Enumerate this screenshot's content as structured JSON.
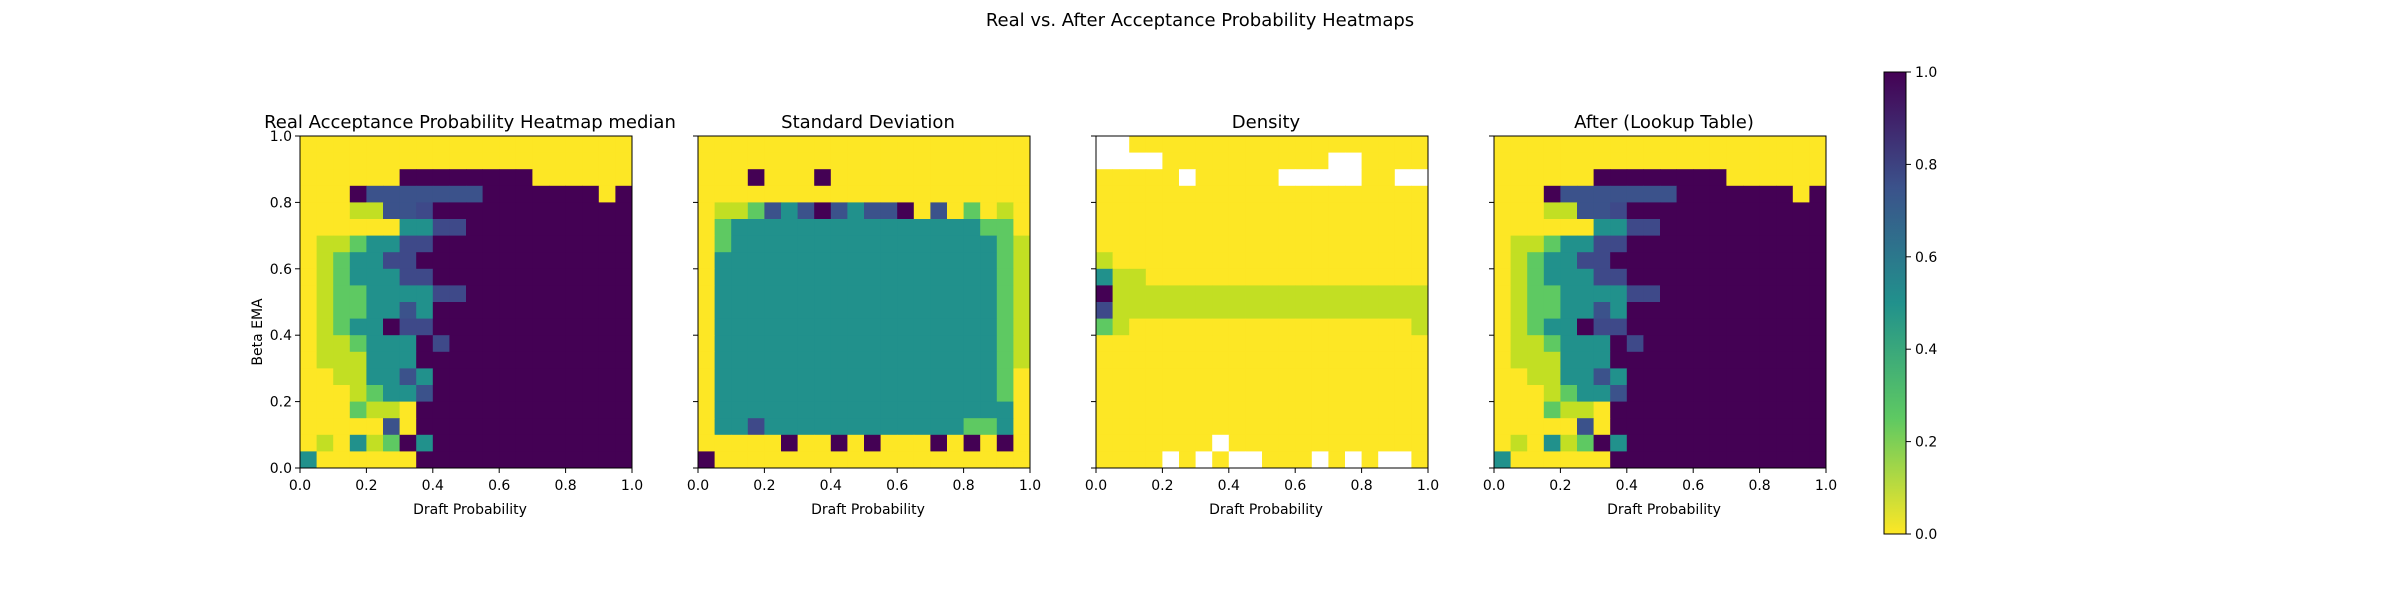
{
  "chart_data": [
    {
      "type": "heatmap",
      "title": "Real Acceptance Probability Heatmap median",
      "xlabel": "Draft Probability",
      "ylabel": "Beta EMA",
      "xlim": [
        0,
        1
      ],
      "ylim": [
        0,
        1
      ],
      "xticks": [
        "0.0",
        "0.2",
        "0.4",
        "0.6",
        "0.8",
        "1.0"
      ],
      "yticks": [
        "0.0",
        "0.2",
        "0.4",
        "0.6",
        "0.8",
        "1.0"
      ],
      "grid": "20x20",
      "colormap": "viridis_r",
      "values": [
        "YYYYYYYYYYYYYYYYYYYY",
        "YYYYYYYYYYYYYYYYYYYY",
        "YYYYYYPPPPPPPPYYYYYY",
        "YYYPNNNNNNNPPPPPPPYP",
        "YYYLLNNDPPPPPPPPPPPP",
        "YYYYYYTTDDPPPPPPPPPP",
        "YLLGTTDDPPPPPPPPPPPP",
        "YLGTTDDPPPPPPPPPPPPP",
        "YLGTTTDDPPPPPPPPPPPP",
        "YLGGTTTTDDPPPPPPPPPP",
        "YLGGTTNTPPPPPPPPPPPP",
        "YLGTTPDDPPPPPPPPPPPP",
        "YLLGTTTPDPPPPPPPPPPP",
        "YLLLTTTPPPPPPPPPPPPP",
        "YYLLTTNTPPPPPPPPPPPP",
        "YYYLGTTNPPPPPPPPPPPP",
        "YYYGLLYPPPPPPPPPPPPP",
        "YYYYYNYPPPPPPPPPPPPP",
        "YLYTLGPTPPPPPPPPPPPP",
        "TYYYYYYPPPPPPPPPPPPP"
      ]
    },
    {
      "type": "heatmap",
      "title": "Standard Deviation",
      "xlabel": "Draft Probability",
      "ylabel": "",
      "xlim": [
        0,
        1
      ],
      "ylim": [
        0,
        1
      ],
      "xticks": [
        "0.0",
        "0.2",
        "0.4",
        "0.6",
        "0.8",
        "1.0"
      ],
      "grid": "20x20",
      "colormap": "viridis_r",
      "values": [
        "YYYYYYYYYYYYYYYYYYYY",
        "YYYYYYYYYYYYYYYYYYYY",
        "YYYPYYYPYYYYYYYYYYYY",
        "YYYYYYYYYYYYYYYYYYYY",
        "YLLGNTNPNTNNPYNYGYLY",
        "YGTTTTTTTTTTTTTTTGGY",
        "YGTTTTTTTTTTTTTTTTGL",
        "YTTTTTTTTTTTTTTTTTGL",
        "YTTTTTTTTTTTTTTTTTGL",
        "YTTTTTTTTTTTTTTTTTGL",
        "YTTTTTTTTTTTTTTTTTGL",
        "YTTTTTTTTTTTTTTTTTGL",
        "YTTTTTTTTTTTTTTTTTGL",
        "YTTTTTTTTTTTTTTTTTGL",
        "YTTTTTTTTTTTTTTTTTGY",
        "YTTTTTTTTTTTTTTTTTGY",
        "YTTTTTTTTTTTTTTTTTTY",
        "YTTDTTTTTTTTTTTTGGTY",
        "YYYYYPYYPYPYYYPYPYPY",
        "PYYYYYYYYYYYYYYYYYYY"
      ]
    },
    {
      "type": "heatmap",
      "title": "Density",
      "xlabel": "Draft Probability",
      "ylabel": "",
      "xlim": [
        0,
        1
      ],
      "ylim": [
        0,
        1
      ],
      "xticks": [
        "0.0",
        "0.2",
        "0.4",
        "0.6",
        "0.8",
        "1.0"
      ],
      "grid": "20x20",
      "colormap": "viridis_r",
      "values": [
        "WWYYYYYYYYYYYYYYYYYY",
        "WWWWYYYYYYYYYYWWYYYY",
        "YYYYYWYYYYYWWWWWYYWW",
        "YYYYYYYYYYYYYYYYYYYY",
        "YYYYYYYYYYYYYYYYYYYY",
        "YYYYYYYYYYYYYYYYYYYY",
        "YYYYYYYYYYYYYYYYYYYY",
        "LYYYYYYYYYYYYYYYYYYY",
        "TLLYYYYYYYYYYYYYYYYY",
        "PLLLLLLLLLLLLLLLLLLL",
        "DLLLLLLLLLLLLLLLLLLL",
        "GLYYYYYYYYYYYYYYYYYL",
        "YYYYYYYYYYYYYYYYYYYY",
        "YYYYYYYYYYYYYYYYYYYY",
        "YYYYYYYYYYYYYYYYYYYY",
        "YYYYYYYYYYYYYYYYYYYY",
        "YYYYYYYYYYYYYYYYYYYY",
        "YYYYYYYYYYYYYYYYYYYY",
        "YYYYYYYWYYYYYYYYYYYY",
        "YYYYWYWYWWYYYWYWYWWY"
      ]
    },
    {
      "type": "heatmap",
      "title": "After (Lookup Table)",
      "xlabel": "Draft Probability",
      "ylabel": "",
      "xlim": [
        0,
        1
      ],
      "ylim": [
        0,
        1
      ],
      "xticks": [
        "0.0",
        "0.2",
        "0.4",
        "0.6",
        "0.8",
        "1.0"
      ],
      "grid": "20x20",
      "colormap": "viridis_r",
      "values": [
        "YYYYYYYYYYYYYYYYYYYY",
        "YYYYYYYYYYYYYYYYYYYY",
        "YYYYYYPPPPPPPPYYYYYY",
        "YYYPNNNNNNNPPPPPPPYP",
        "YYYLLNNDPPPPPPPPPPPP",
        "YYYYYYTTDDPPPPPPPPPP",
        "YLLGTTDDPPPPPPPPPPPP",
        "YLGTTDDPPPPPPPPPPPPP",
        "YLGTTTDDPPPPPPPPPPPP",
        "YLGGTTTTDDPPPPPPPPPP",
        "YLGGTTNTPPPPPPPPPPPP",
        "YLGTTPDDPPPPPPPPPPPP",
        "YLLGTTTPDPPPPPPPPPPP",
        "YLLLTTTPPPPPPPPPPPPP",
        "YYLLTTNTPPPPPPPPPPPP",
        "YYYLGTTNPPPPPPPPPPPP",
        "YYYGLLYPPPPPPPPPPPPP",
        "YYYYYNYPPPPPPPPPPPPP",
        "YLYTLGPTPPPPPPPPPPPP",
        "TYYYYYYPPPPPPPPPPPPP"
      ]
    }
  ],
  "figure": {
    "suptitle": "Real vs. After Acceptance Probability Heatmaps",
    "colorbar": {
      "ticks": [
        "0.0",
        "0.2",
        "0.4",
        "0.6",
        "0.8",
        "1.0"
      ],
      "range": [
        0,
        1
      ]
    },
    "color_key": {
      "Y": "#fde725",
      "L": "#c2df23",
      "G": "#5ec962",
      "T": "#21918c",
      "N": "#3b528b",
      "D": "#3e4989",
      "P": "#440154",
      "W": "#ffffff"
    }
  }
}
